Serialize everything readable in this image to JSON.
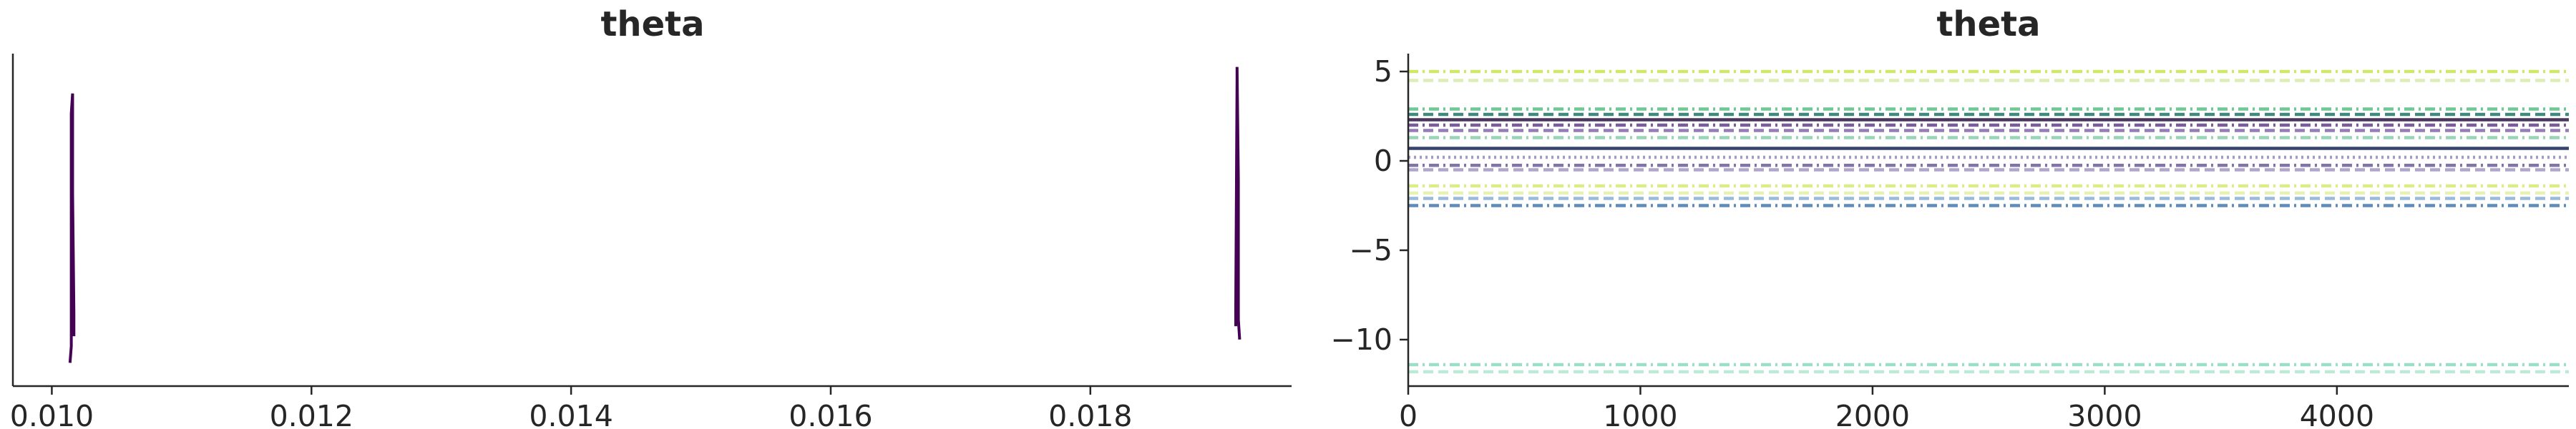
{
  "chart_data": [
    {
      "type": "line",
      "chart_kind": "density (kde) per chain",
      "title": "theta",
      "xlabel": "",
      "ylabel": "",
      "xlim": [
        0.0097,
        0.01955
      ],
      "xticks": [
        0.01,
        0.012,
        0.014,
        0.016,
        0.018
      ],
      "xtick_labels": [
        "0.010",
        "0.012",
        "0.014",
        "0.016",
        "0.018"
      ],
      "yticks_visible": false,
      "grid": false,
      "series": [
        {
          "values_x": [
            0.01014,
            0.01015,
            0.01015,
            0.01016,
            0.01016,
            0.01017,
            0.01017
          ],
          "values_y": [
            0.07,
            0.12,
            0.82,
            0.88,
            0.58,
            0.22,
            0.15
          ],
          "color": "#440154"
        },
        {
          "values_x": [
            0.01912,
            0.01912,
            0.01913,
            0.01913,
            0.01914,
            0.01914,
            0.01915
          ],
          "values_y": [
            0.18,
            0.24,
            0.92,
            0.96,
            0.62,
            0.2,
            0.14
          ],
          "color": "#440154"
        }
      ]
    },
    {
      "type": "line",
      "chart_kind": "trace",
      "title": "theta",
      "xlabel": "",
      "ylabel": "",
      "xlim": [
        0,
        4999
      ],
      "ylim": [
        -12.6,
        6.0
      ],
      "xticks": [
        0,
        1000,
        2000,
        3000,
        4000
      ],
      "xtick_labels": [
        "0",
        "1000",
        "2000",
        "3000",
        "4000"
      ],
      "yticks": [
        5,
        0,
        -5,
        -10
      ],
      "ytick_labels": [
        "5",
        "0",
        "−5",
        "−10"
      ],
      "grid": false,
      "levels": [
        {
          "y": 5.0,
          "color": "#c9e65a",
          "dash": "dashdot"
        },
        {
          "y": 4.5,
          "color": "#d8ecae",
          "dash": "dashed"
        },
        {
          "y": 2.9,
          "color": "#5ec38a",
          "dash": "dashdot"
        },
        {
          "y": 2.6,
          "color": "#2a7d6e",
          "dash": "dashed"
        },
        {
          "y": 2.3,
          "color": "#35204a",
          "dash": "solid"
        },
        {
          "y": 2.0,
          "color": "#6a4c93",
          "dash": "dashdot"
        },
        {
          "y": 1.7,
          "color": "#8a6fb0",
          "dash": "dashed"
        },
        {
          "y": 1.3,
          "color": "#8bd0b0",
          "dash": "dashdot"
        },
        {
          "y": 0.7,
          "color": "#1f2f5e",
          "dash": "solid"
        },
        {
          "y": 0.2,
          "color": "#9d8fbf",
          "dash": "dotted"
        },
        {
          "y": -0.25,
          "color": "#7566a0",
          "dash": "dashdot"
        },
        {
          "y": -0.5,
          "color": "#a69cc4",
          "dash": "dashed"
        },
        {
          "y": -1.4,
          "color": "#d7eb7a",
          "dash": "dashdot"
        },
        {
          "y": -1.8,
          "color": "#e3f1a8",
          "dash": "dashed"
        },
        {
          "y": -2.1,
          "color": "#8fb3d9",
          "dash": "dashed"
        },
        {
          "y": -2.5,
          "color": "#4c7fb4",
          "dash": "dashdot"
        },
        {
          "y": -11.4,
          "color": "#8fdcc0",
          "dash": "dashdot"
        },
        {
          "y": -11.8,
          "color": "#b5e8d3",
          "dash": "dashed"
        }
      ]
    }
  ]
}
